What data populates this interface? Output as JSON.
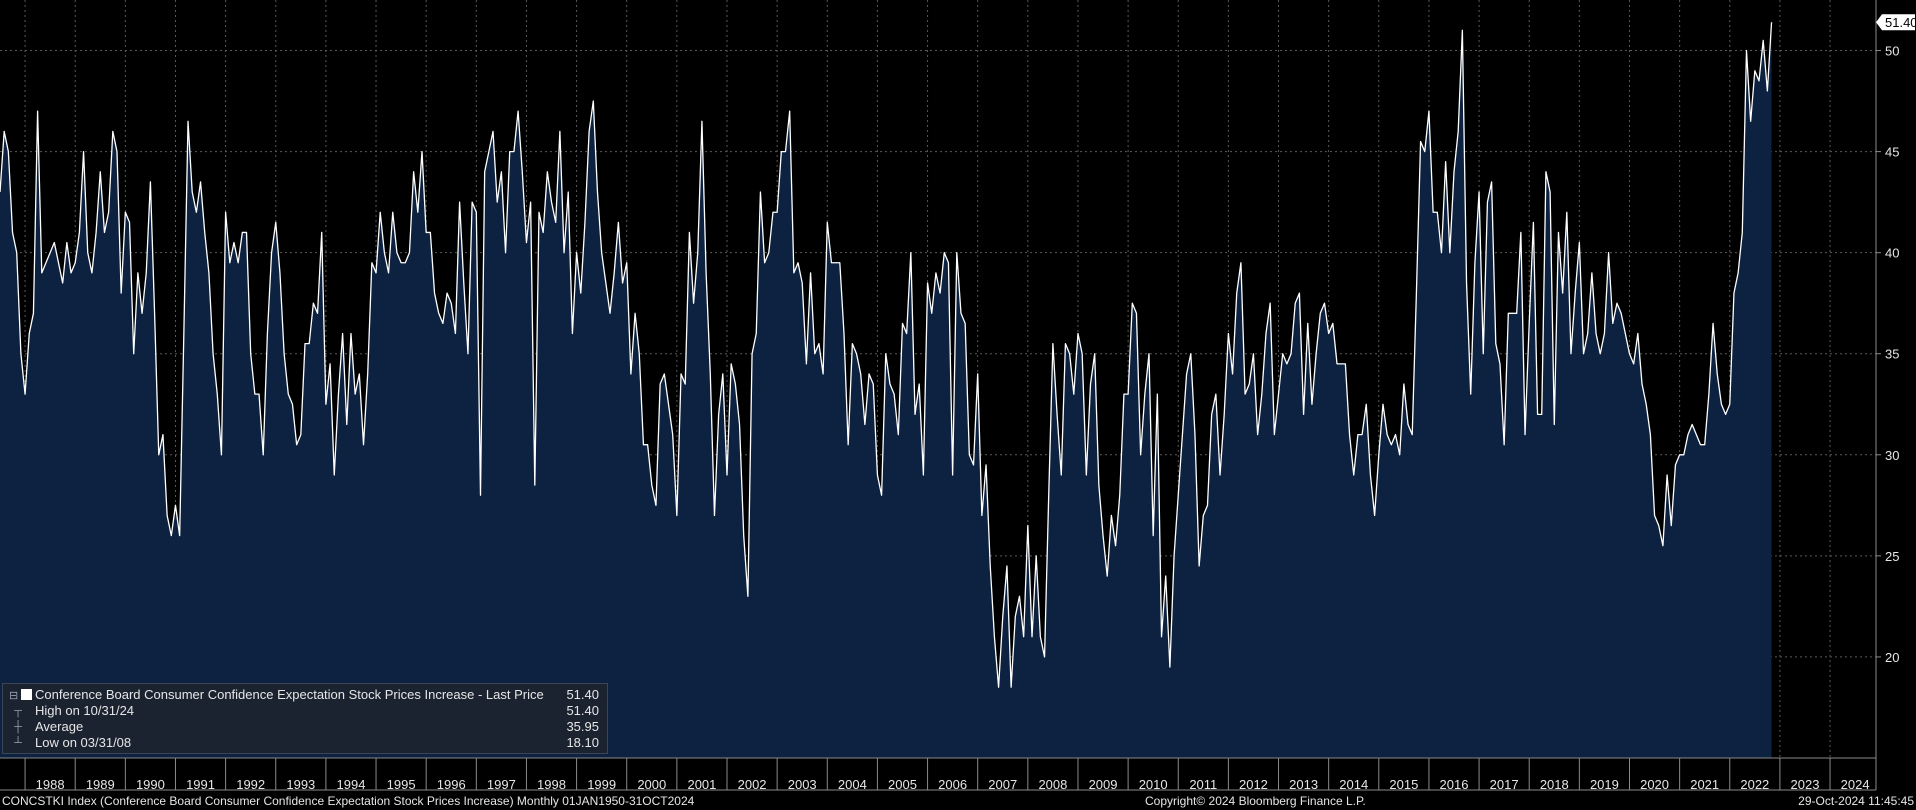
{
  "chart_data": {
    "type": "area",
    "title": "Conference Board Consumer Confidence Expectation Stock Prices Increase",
    "frequency": "Monthly",
    "colors": {
      "line": "#ffffff",
      "fill": "#0c2240",
      "background": "#000000",
      "grid": "#5a5a5a"
    },
    "grid": true,
    "ylim": [
      15,
      52.5
    ],
    "yticks": [
      20,
      25,
      30,
      35,
      40,
      45,
      50
    ],
    "x_start": "1987-07",
    "x_end": "2024-12",
    "x_tick_labels": [
      "1988",
      "1989",
      "1990",
      "1991",
      "1992",
      "1993",
      "1994",
      "1995",
      "1996",
      "1997",
      "1998",
      "1999",
      "2000",
      "2001",
      "2002",
      "2003",
      "2004",
      "2005",
      "2006",
      "2007",
      "2008",
      "2009",
      "2010",
      "2011",
      "2012",
      "2013",
      "2014",
      "2015",
      "2016",
      "2017",
      "2018",
      "2019",
      "2020",
      "2021",
      "2022",
      "2023",
      "2024"
    ],
    "series_start": "1987-07",
    "values": [
      43,
      46,
      45,
      41,
      40,
      35,
      33,
      36,
      37,
      47,
      39,
      39.5,
      40,
      40.5,
      39.5,
      38.5,
      40.5,
      39,
      39.5,
      41,
      45,
      40,
      39,
      41,
      44,
      41,
      42,
      46,
      45,
      38,
      42,
      41.5,
      35,
      39,
      37,
      39,
      43.5,
      37,
      30,
      31,
      27,
      26,
      27.5,
      26,
      36,
      46.5,
      43,
      42,
      43.5,
      41,
      39,
      35,
      33,
      30,
      42,
      39.5,
      40.5,
      39.5,
      41,
      41,
      35,
      33,
      33,
      30,
      36,
      40,
      41.5,
      39,
      35,
      33,
      32.5,
      30.5,
      31,
      35.5,
      35.5,
      37.5,
      37,
      41,
      32.5,
      34.5,
      29,
      33,
      36,
      31.5,
      36,
      33,
      34,
      30.5,
      34,
      39.5,
      39,
      42,
      40,
      39,
      42,
      40,
      39.5,
      39.5,
      40,
      44,
      42,
      45,
      41,
      41,
      38,
      37,
      36.5,
      38,
      37.5,
      36,
      42.5,
      38.5,
      35,
      42.5,
      42,
      28,
      44,
      45,
      46,
      42.5,
      44,
      40,
      45,
      45,
      47,
      44,
      40.5,
      42.5,
      28.5,
      42,
      41,
      44,
      42.5,
      41.5,
      46,
      40,
      43,
      36,
      40,
      38,
      41.5,
      46,
      47.5,
      43,
      40,
      38.5,
      37,
      39,
      41.5,
      38.5,
      39.5,
      34,
      37,
      35,
      30.5,
      30.5,
      28.5,
      27.5,
      33.5,
      34,
      32.5,
      31,
      27,
      34,
      33.5,
      41,
      37.5,
      40,
      46.5,
      39,
      34,
      27,
      32,
      34,
      29,
      34.5,
      33.5,
      31.5,
      26,
      23,
      35,
      36,
      43,
      39.5,
      40,
      42,
      42,
      45,
      45,
      47,
      39,
      39.5,
      38.5,
      34.5,
      39,
      35,
      35.5,
      34,
      41.5,
      39.5,
      39.5,
      39.5,
      36,
      30.5,
      35.5,
      35,
      34,
      31.5,
      34,
      33.5,
      29,
      28,
      35,
      33.5,
      33,
      31,
      36.5,
      36,
      40,
      32,
      33.5,
      29,
      38.5,
      37,
      39,
      38,
      40,
      39.5,
      29,
      40,
      37,
      36.5,
      30,
      29.5,
      34,
      27,
      29.5,
      24.5,
      21,
      18.5,
      22,
      24.5,
      18.5,
      22,
      23,
      21,
      26.5,
      21,
      25,
      21,
      20,
      28,
      35.5,
      32,
      29,
      35.5,
      35,
      33,
      36,
      35,
      29,
      33.5,
      35,
      28.5,
      26,
      24,
      27,
      25.5,
      28,
      33,
      33,
      37.5,
      37,
      30,
      33,
      35,
      26,
      33,
      21,
      24,
      19.5,
      25,
      28,
      31,
      34,
      35,
      31,
      24.5,
      27,
      27.5,
      32,
      33,
      29,
      32,
      36,
      34,
      38,
      39.5,
      33,
      33.5,
      35,
      31,
      33,
      36,
      37.5,
      31,
      33,
      35,
      34.5,
      35,
      37.5,
      38,
      32,
      36.5,
      32.5,
      35,
      37,
      37.5,
      36,
      36.5,
      34.5,
      34.5,
      34.5,
      31,
      29,
      31,
      31,
      32.5,
      29,
      27,
      30,
      32.5,
      31,
      30.5,
      31,
      30,
      33.5,
      31.5,
      31,
      38,
      45.5,
      45,
      47,
      42,
      42,
      40,
      44.5,
      40,
      44,
      46,
      51,
      38.5,
      33,
      39.5,
      43,
      35,
      42.5,
      43.5,
      35.5,
      34.5,
      30.5,
      37,
      37,
      37,
      41,
      31,
      36.5,
      41.5,
      32,
      32,
      44,
      43,
      31.5,
      41,
      38,
      42,
      35,
      38,
      40.5,
      35,
      36,
      39,
      36,
      35,
      36,
      40,
      36.5,
      37.5,
      37,
      36,
      35,
      34.5,
      36,
      33.5,
      32.5,
      31,
      27,
      26.5,
      25.5,
      29,
      26.5,
      29.5,
      30,
      30,
      31,
      31.5,
      31,
      30.5,
      30.5,
      33,
      36.5,
      34,
      32.5,
      32,
      32.5,
      38,
      39,
      41,
      50,
      46.5,
      49,
      48.5,
      50.5,
      48,
      51.4
    ],
    "last_price_label": "51.40",
    "legend": {
      "name": "Conference Board Consumer Confidence Expectation Stock Prices Increase - Last Price",
      "last": "51.40",
      "high_label": "High on 10/31/24",
      "high": "51.40",
      "avg_label": "Average",
      "avg": "35.95",
      "low_label": "Low on 03/31/08",
      "low": "18.10"
    }
  },
  "footer": {
    "left": "CONCSTKI Index (Conference Board Consumer Confidence Expectation Stock Prices Increase)  Monthly 01JAN1950-31OCT2024",
    "center": "Copyright© 2024 Bloomberg Finance L.P.",
    "right": "29-Oct-2024 11:45:45"
  }
}
